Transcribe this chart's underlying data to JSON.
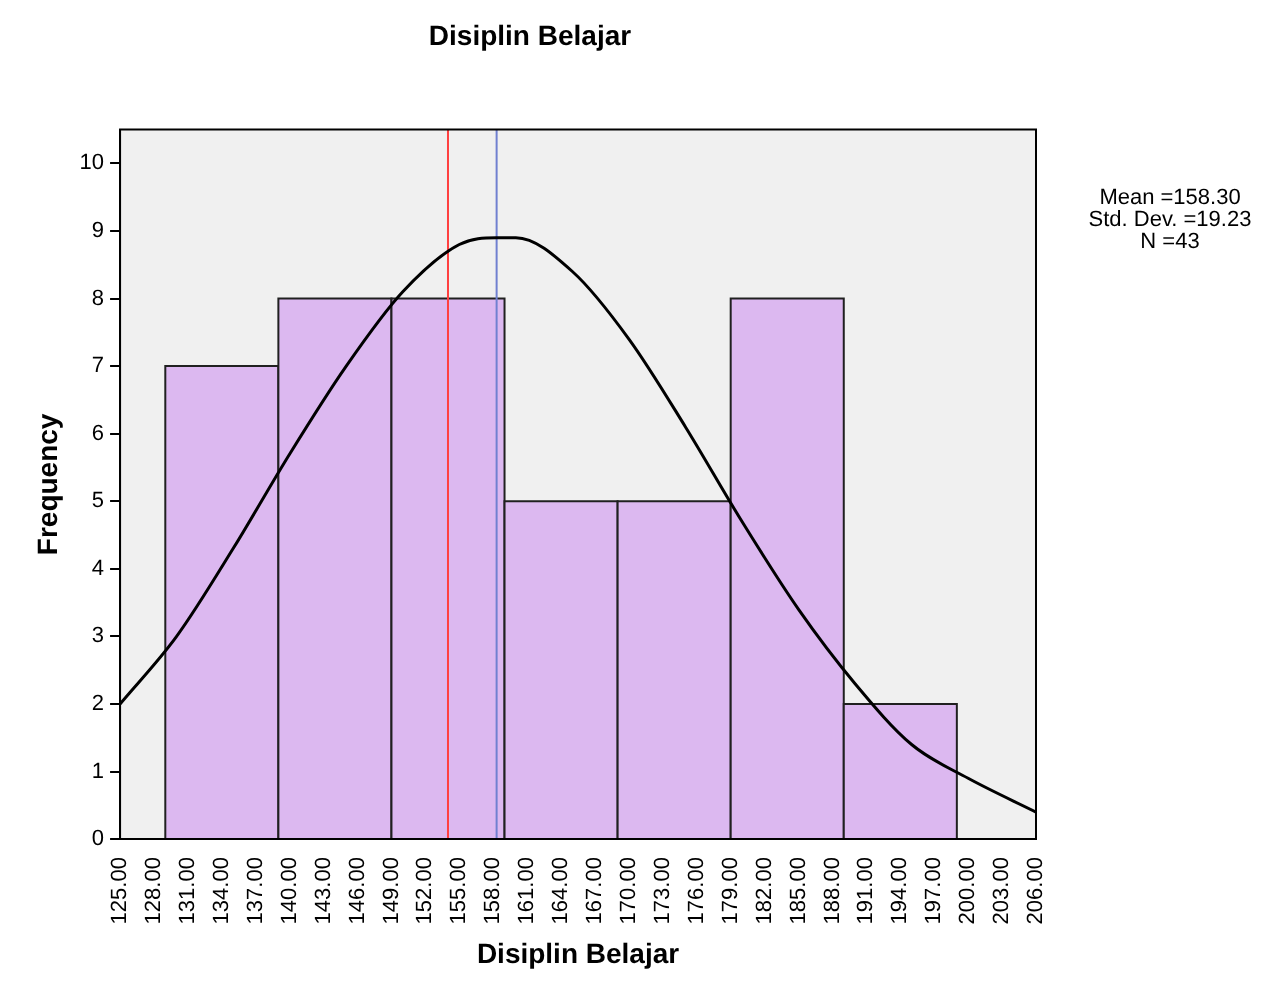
{
  "chart_data": {
    "type": "histogram",
    "title": "Disiplin Belajar",
    "xlabel": "Disiplin Belajar",
    "ylabel": "Frequency",
    "bins": [
      129,
      139,
      149,
      159,
      169,
      179,
      189,
      199
    ],
    "values": [
      7,
      8,
      8,
      5,
      5,
      8,
      2
    ],
    "color": "#dcb8f0",
    "series": [
      {
        "type": "line",
        "color": "#000000",
        "x": [
          125,
          130,
          135,
          140,
          145,
          150,
          155,
          158.3,
          160,
          165,
          170,
          175,
          180,
          185,
          190,
          195,
          200,
          206
        ],
        "values": [
          2.0,
          3.0,
          4.3,
          5.7,
          7.0,
          8.1,
          8.8,
          8.9,
          8.9,
          8.4,
          7.4,
          6.1,
          4.7,
          3.4,
          2.3,
          1.4,
          0.9,
          0.4
        ]
      }
    ],
    "ref_lines": [
      {
        "axis": "x",
        "value": 154,
        "color": "#ff4040"
      },
      {
        "axis": "x",
        "value": 158.3,
        "color": "#7080d0"
      }
    ],
    "xlim": [
      125,
      206
    ],
    "xticks": [
      {
        "value": 125,
        "label": "125.00"
      },
      {
        "value": 128,
        "label": "128.00"
      },
      {
        "value": 131,
        "label": "131.00"
      },
      {
        "value": 134,
        "label": "134.00"
      },
      {
        "value": 137,
        "label": "137.00"
      },
      {
        "value": 140,
        "label": "140.00"
      },
      {
        "value": 143,
        "label": "143.00"
      },
      {
        "value": 146,
        "label": "146.00"
      },
      {
        "value": 149,
        "label": "149.00"
      },
      {
        "value": 152,
        "label": "152.00"
      },
      {
        "value": 155,
        "label": "155.00"
      },
      {
        "value": 158,
        "label": "158.00"
      },
      {
        "value": 161,
        "label": "161.00"
      },
      {
        "value": 164,
        "label": "164.00"
      },
      {
        "value": 167,
        "label": "167.00"
      },
      {
        "value": 170,
        "label": "170.00"
      },
      {
        "value": 173,
        "label": "173.00"
      },
      {
        "value": 176,
        "label": "176.00"
      },
      {
        "value": 179,
        "label": "179.00"
      },
      {
        "value": 182,
        "label": "182.00"
      },
      {
        "value": 185,
        "label": "185.00"
      },
      {
        "value": 188,
        "label": "188.00"
      },
      {
        "value": 191,
        "label": "191.00"
      },
      {
        "value": 194,
        "label": "194.00"
      },
      {
        "value": 197,
        "label": "197.00"
      },
      {
        "value": 200,
        "label": "200.00"
      },
      {
        "value": 203,
        "label": "203.00"
      },
      {
        "value": 206,
        "label": "206.00"
      }
    ],
    "ylim": [
      0,
      10.5
    ],
    "yticks": [
      0,
      1,
      2,
      3,
      4,
      5,
      6,
      7,
      8,
      9,
      10
    ],
    "annotations": [
      "Mean =158.30",
      "Std. Dev. =19.23",
      "N =43"
    ]
  }
}
